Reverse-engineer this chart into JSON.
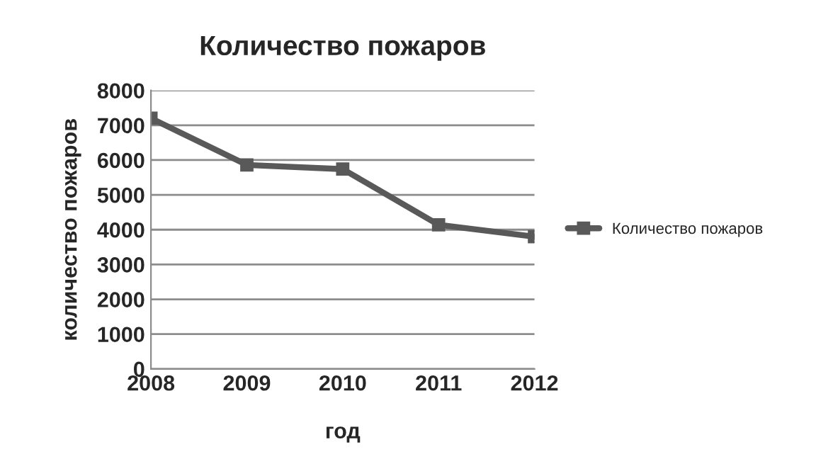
{
  "chart_data": {
    "type": "line",
    "title": "Количество пожаров",
    "xlabel": "год",
    "ylabel": "количество пожаров",
    "x": [
      2008,
      2009,
      2010,
      2011,
      2012
    ],
    "xlim": [
      2008,
      2012
    ],
    "xticks": [
      2008,
      2009,
      2010,
      2011,
      2012
    ],
    "ylim": [
      0,
      8000
    ],
    "yticks": [
      0,
      1000,
      2000,
      3000,
      4000,
      5000,
      6000,
      7000,
      8000
    ],
    "series": [
      {
        "name": "Количество пожаров",
        "color": "#595959",
        "values": [
          7200,
          5860,
          5740,
          4140,
          3800
        ]
      }
    ],
    "grid": "y",
    "legend": "right",
    "marker": "square",
    "line_style": "solid"
  }
}
